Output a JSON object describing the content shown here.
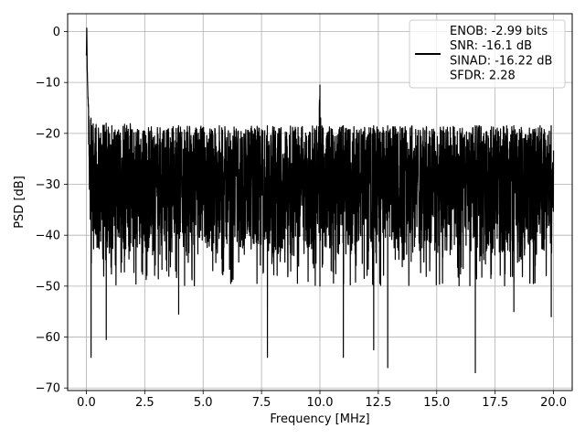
{
  "chart_data": {
    "type": "line",
    "title": "",
    "xlabel": "Frequency [MHz]",
    "ylabel": "PSD [dB]",
    "xlim": [
      -0.8,
      20.8
    ],
    "ylim": [
      -70.5,
      3.5
    ],
    "x_ticks": [
      0.0,
      2.5,
      5.0,
      7.5,
      10.0,
      12.5,
      15.0,
      17.5,
      20.0
    ],
    "x_tick_labels": [
      "0.0",
      "2.5",
      "5.0",
      "7.5",
      "10.0",
      "12.5",
      "15.0",
      "17.5",
      "20.0"
    ],
    "y_ticks": [
      0,
      -10,
      -20,
      -30,
      -40,
      -50,
      -60,
      -70
    ],
    "y_tick_labels": [
      "0",
      "−10",
      "−20",
      "−30",
      "−40",
      "−50",
      "−60",
      "−70"
    ],
    "grid": true,
    "legend": {
      "placement": "top-right",
      "entries": [
        "ENOB: -2.99 bits\nSNR: -16.1 dB\nSINAD: -16.22 dB\nSFDR: 2.28"
      ]
    },
    "series": [
      {
        "name": "ENOB: -2.99 bits\nSNR: -16.1 dB\nSINAD: -16.22 dB\nSFDR: 2.28",
        "color": "#000000",
        "x": [
          0.0,
          0.02,
          0.04,
          0.06,
          0.08,
          0.1,
          0.14,
          0.2,
          0.3,
          0.45,
          0.6,
          0.8,
          1.0,
          1.3,
          1.6,
          2.0,
          2.5,
          3.0,
          3.5,
          4.0,
          4.5,
          5.0,
          5.5,
          6.0,
          6.5,
          7.0,
          7.5,
          8.0,
          8.5,
          9.0,
          9.5,
          9.9,
          10.0,
          10.1,
          10.5,
          11.0,
          11.5,
          12.0,
          12.5,
          13.0,
          13.5,
          14.0,
          14.5,
          15.0,
          15.5,
          16.0,
          16.5,
          17.0,
          17.5,
          18.0,
          18.5,
          19.0,
          19.5,
          20.0
        ],
        "y": [
          -5,
          0,
          -8,
          -12,
          -14,
          -15,
          -20,
          -25,
          -30,
          -28,
          -26,
          -31,
          -27,
          -29,
          -30,
          -28,
          -31,
          -29,
          -30,
          -27,
          -31,
          -29,
          -30,
          -28,
          -30,
          -29,
          -31,
          -28,
          -30,
          -29,
          -30,
          -28,
          -10.5,
          -27,
          -30,
          -29,
          -31,
          -28,
          -30,
          -29,
          -31,
          -28,
          -30,
          -29,
          -31,
          -28,
          -30,
          -29,
          -31,
          -28,
          -30,
          -29,
          -31,
          -30
        ],
        "upper_envelope": [
          -5,
          0,
          -8,
          -12,
          -14,
          -15,
          -16,
          -17,
          -17.5,
          -18,
          -18,
          -18,
          -18,
          -18,
          -18,
          -18,
          -18.5,
          -18.5,
          -18.5,
          -18.5,
          -18.5,
          -18.5,
          -18.5,
          -18.5,
          -18.5,
          -18.5,
          -18.5,
          -18.5,
          -18.5,
          -18.5,
          -18.5,
          -18.5,
          -10.5,
          -18.5,
          -18.5,
          -18.5,
          -18.5,
          -18.5,
          -18.5,
          -18.5,
          -18.5,
          -18.5,
          -18.5,
          -18.5,
          -18.5,
          -18.5,
          -18.5,
          -18.5,
          -18.5,
          -18.5,
          -18.5,
          -18.5,
          -18.5,
          -18.5
        ],
        "lower_envelope": [
          -5,
          0,
          -8,
          -12,
          -14,
          -25,
          -39,
          -42,
          -43,
          -44,
          -44,
          -44,
          -44,
          -44,
          -44,
          -44,
          -44,
          -44,
          -44,
          -44,
          -44,
          -44,
          -44,
          -44,
          -44,
          -44,
          -44,
          -44,
          -44,
          -44,
          -44,
          -44,
          -44,
          -44,
          -44,
          -44,
          -44,
          -44,
          -44,
          -44,
          -44,
          -44,
          -44,
          -44,
          -44,
          -44,
          -44,
          -44,
          -44,
          -44,
          -44,
          -44,
          -44,
          -44
        ]
      }
    ],
    "notable_dips": [
      {
        "x": 0.2,
        "y": -64
      },
      {
        "x": 0.85,
        "y": -60.5
      },
      {
        "x": 3.95,
        "y": -55.5
      },
      {
        "x": 7.75,
        "y": -64
      },
      {
        "x": 11.0,
        "y": -64
      },
      {
        "x": 12.3,
        "y": -62.5
      },
      {
        "x": 12.9,
        "y": -66
      },
      {
        "x": 16.65,
        "y": -67
      },
      {
        "x": 18.3,
        "y": -55
      },
      {
        "x": 19.9,
        "y": -56
      }
    ]
  }
}
